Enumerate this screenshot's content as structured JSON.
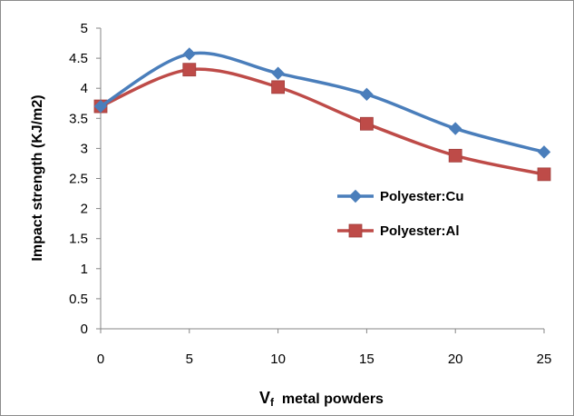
{
  "chart_data": {
    "type": "line",
    "x": [
      0,
      5,
      10,
      15,
      20,
      25
    ],
    "xlabel_main": "V",
    "xlabel_sub": "f",
    "xlabel_rest": "  metal powders",
    "ylabel": "Impact strength (KJ/m2)",
    "xlim": [
      0,
      25
    ],
    "ylim": [
      0,
      5
    ],
    "xticks": [
      "0",
      "5",
      "10",
      "15",
      "20",
      "25"
    ],
    "yticks": [
      "0",
      "0.5",
      "1",
      "1.5",
      "2",
      "2.5",
      "3",
      "3.5",
      "4",
      "4.5",
      "5"
    ],
    "grid": false,
    "legend_position": "right",
    "series": [
      {
        "name": "Polyester:Cu",
        "values": [
          3.7,
          4.57,
          4.25,
          3.9,
          3.33,
          2.94
        ],
        "color": "#4a7ebb",
        "marker": "diamond"
      },
      {
        "name": "Polyester:Al",
        "values": [
          3.7,
          4.31,
          4.02,
          3.41,
          2.88,
          2.57
        ],
        "color": "#be4b48",
        "marker": "square"
      }
    ]
  }
}
